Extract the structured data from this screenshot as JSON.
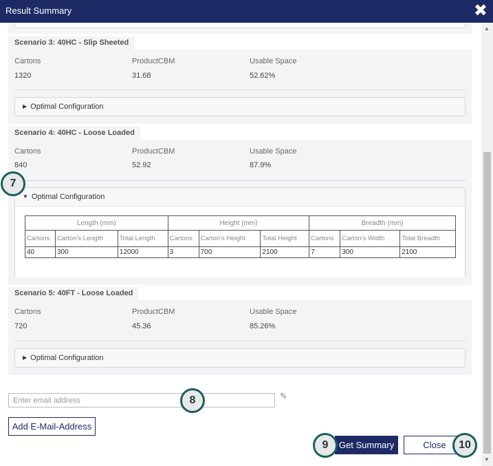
{
  "window": {
    "title": "Result Summary",
    "close_glyph": "✖"
  },
  "scenarios": [
    {
      "title": "Scenario 3: 40HC - Slip Sheeted",
      "labels": [
        "Cartons",
        "ProductCBM",
        "Usable Space"
      ],
      "values": [
        "1320",
        "31.68",
        "52.62%"
      ],
      "optimal_label": "Optimal Configuration",
      "expanded": false
    },
    {
      "title": "Scenario 4: 40HC - Loose Loaded",
      "labels": [
        "Cartons",
        "ProductCBM",
        "Usable Space"
      ],
      "values": [
        "840",
        "52.92",
        "87.9%"
      ],
      "optimal_label": "Optimal Configuration",
      "expanded": true,
      "config_table": {
        "groups": [
          "Length (mm)",
          "Height (mm)",
          "Breadth (mm)"
        ],
        "columns": [
          "Cartons",
          "Carton's Length",
          "Total Length",
          "Cartons",
          "Carton's Height",
          "Total Height",
          "Cartons",
          "Carton's Width",
          "Total Breadth"
        ],
        "values": [
          "40",
          "300",
          "12000",
          "3",
          "700",
          "2100",
          "7",
          "300",
          "2100"
        ]
      }
    },
    {
      "title": "Scenario 5: 40FT - Loose Loaded",
      "labels": [
        "Cartons",
        "ProductCBM",
        "Usable Space"
      ],
      "values": [
        "720",
        "45.36",
        "85.26%"
      ],
      "optimal_label": "Optimal Configuration",
      "expanded": false
    }
  ],
  "email": {
    "placeholder": "Enter email address",
    "value": ""
  },
  "buttons": {
    "add_email": "Add E-Mail-Address",
    "get_summary": "Get Summary",
    "close": "Close"
  },
  "callouts": [
    "7",
    "8",
    "9",
    "10"
  ],
  "icons": {
    "expand": "triangle-right-icon",
    "collapse": "triangle-down-icon",
    "edit": "pencil-icon",
    "close": "close-icon"
  },
  "colors": {
    "titlebar": "#1d2a66",
    "callout_border": "#1b5e5e",
    "panel_bg": "#f2f4f5"
  }
}
